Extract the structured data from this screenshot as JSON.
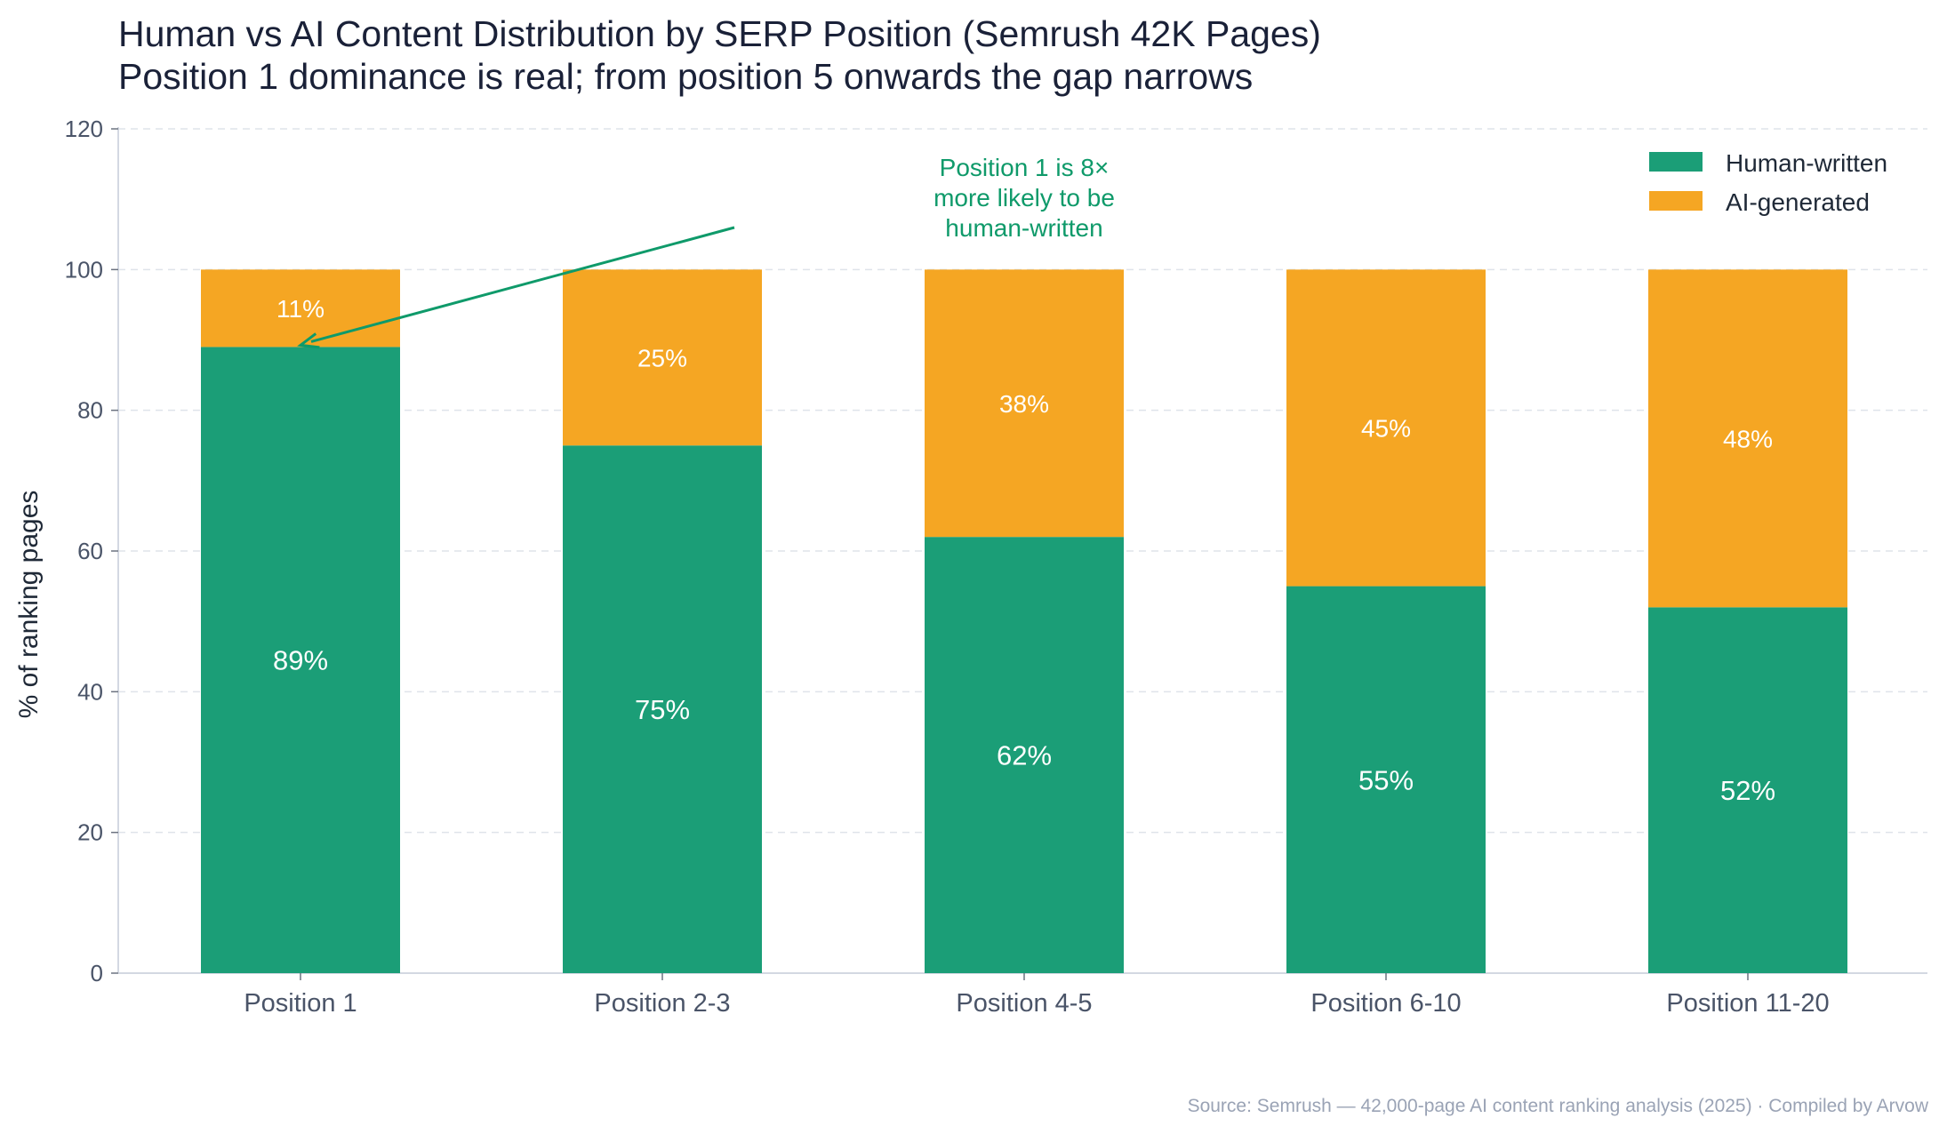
{
  "chart_data": {
    "type": "bar",
    "stacked": true,
    "title": "Human vs AI Content Distribution by SERP Position (Semrush 42K Pages)",
    "subtitle": "Position 1 dominance is real; from position 5 onwards the gap narrows",
    "xlabel": "",
    "ylabel": "% of ranking pages",
    "ylim": [
      0,
      120
    ],
    "yticks": [
      0,
      20,
      40,
      60,
      80,
      100,
      120
    ],
    "grid": true,
    "legend_placement": "top-right",
    "categories": [
      "Position 1",
      "Position 2-3",
      "Position 4-5",
      "Position 6-10",
      "Position 11-20"
    ],
    "series": [
      {
        "name": "Human-written",
        "color": "#1b9e77",
        "values": [
          89,
          75,
          62,
          55,
          52
        ],
        "labels": [
          "89%",
          "75%",
          "62%",
          "55%",
          "52%"
        ]
      },
      {
        "name": "AI-generated",
        "color": "#f5a623",
        "values": [
          11,
          25,
          38,
          45,
          48
        ],
        "labels": [
          "11%",
          "25%",
          "38%",
          "45%",
          "48%"
        ]
      }
    ],
    "annotation": {
      "lines": [
        "Position 1 is 8×",
        "more likely to be",
        "human-written"
      ],
      "text_at": {
        "x": 2.5,
        "y": 112
      },
      "arrow_to": {
        "x": 0.5,
        "y": 89
      },
      "color": "#0f9a6a"
    },
    "source": "Source: Semrush — 42,000-page AI content ranking analysis (2025) · Compiled by Arvow"
  }
}
